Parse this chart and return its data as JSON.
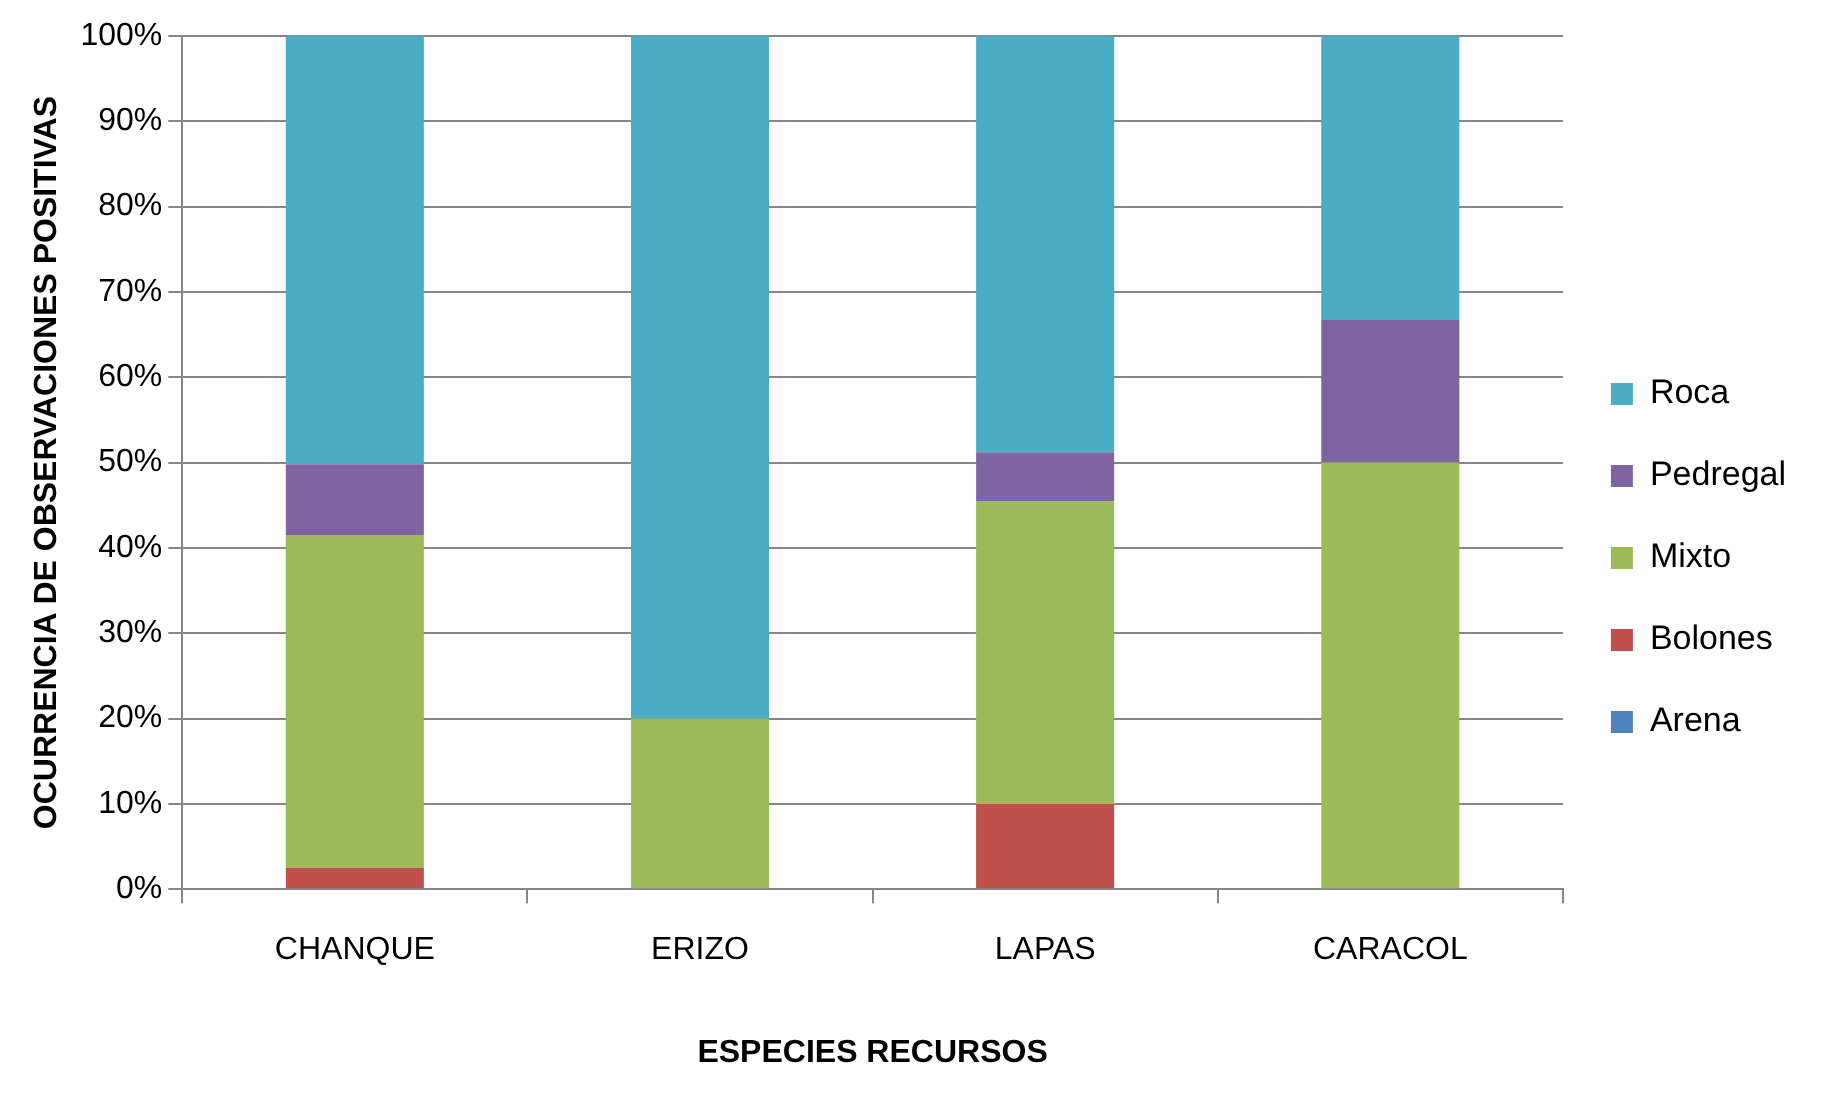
{
  "chart_data": {
    "type": "bar",
    "stacked": true,
    "xlabel": "ESPECIES RECURSOS",
    "ylabel": "OCURRENCIA DE OBSERVACIONES POSITIVAS",
    "categories": [
      "CHANQUE",
      "ERIZO",
      "LAPAS",
      "CARACOL"
    ],
    "series": [
      {
        "name": "Arena",
        "color": "#4f81bd",
        "values": [
          0,
          0,
          0,
          0
        ]
      },
      {
        "name": "Bolones",
        "color": "#c0504d",
        "values": [
          2.5,
          0,
          10,
          0
        ]
      },
      {
        "name": "Mixto",
        "color": "#9bbb59",
        "values": [
          39,
          20,
          35.5,
          50
        ]
      },
      {
        "name": "Pedregal",
        "color": "#8064a2",
        "values": [
          8.3,
          0,
          5.7,
          16.7
        ]
      },
      {
        "name": "Roca",
        "color": "#4bacc6",
        "values": [
          50.2,
          80,
          48.8,
          33.3
        ]
      }
    ],
    "ylim": [
      0,
      100
    ],
    "yticks": [
      {
        "value": 0,
        "label": "0%"
      },
      {
        "value": 10,
        "label": "10%"
      },
      {
        "value": 20,
        "label": "20%"
      },
      {
        "value": 30,
        "label": "30%"
      },
      {
        "value": 40,
        "label": "40%"
      },
      {
        "value": 50,
        "label": "50%"
      },
      {
        "value": 60,
        "label": "60%"
      },
      {
        "value": 70,
        "label": "70%"
      },
      {
        "value": 80,
        "label": "80%"
      },
      {
        "value": 90,
        "label": "90%"
      },
      {
        "value": 100,
        "label": "100%"
      }
    ],
    "grid": "y",
    "legend": "right"
  }
}
